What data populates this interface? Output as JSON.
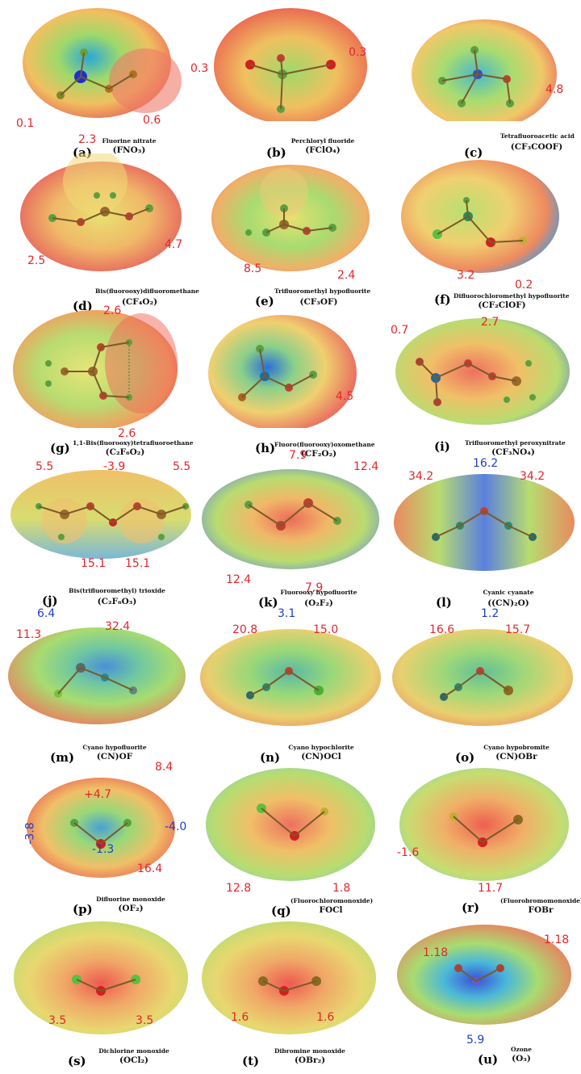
{
  "panels": [
    {
      "letter": "(a)",
      "name": "Fluorine nitrate",
      "formula": "(FNO₃)",
      "values": [
        "0.1",
        "2.3",
        "0.6"
      ]
    },
    {
      "letter": "(b)",
      "name": "Perchloryl fluoride",
      "formula": "(FClO₄)",
      "values": [
        "0.3",
        "0.3"
      ]
    },
    {
      "letter": "(c)",
      "name": "Tetrafluoroacetic acid",
      "formula": "(CF₃COOF)",
      "values": [
        "4.8"
      ]
    },
    {
      "letter": "(d)",
      "name": "Bis(fluorooxy)difluoromethane",
      "formula": "(CF₄O₂)",
      "values": [
        "2.5",
        "4.7"
      ]
    },
    {
      "letter": "(e)",
      "name": "Trifluoromethyl hypofluorite",
      "formula": "(CF₃OF)",
      "values": [
        "8.5",
        "2.4"
      ]
    },
    {
      "letter": "(f)",
      "name": "Difluorochloromethyl hypofluorite",
      "formula": "(CF₂ClOF)",
      "values": [
        "3.2",
        "0.2"
      ]
    },
    {
      "letter": "(g)",
      "name": "1,1-Bis(fluorooxy)tetrafluoroethane",
      "formula": "(C₂F₆O₂)",
      "values": [
        "2.6",
        "2.6"
      ]
    },
    {
      "letter": "(h)",
      "name": "Fluoro(fluorooxy)oxomethane",
      "formula": "(CF₂O₂)",
      "values": [
        "4.5"
      ]
    },
    {
      "letter": "(i)",
      "name": "Trifluoromethyl peroxynitrate",
      "formula": "(CF₃NO₄)",
      "values": [
        "0.7",
        "2.7"
      ]
    },
    {
      "letter": "(j)",
      "name": "Bis(trifluoromethyl) trioxide",
      "formula": "(C₂F₆O₃)",
      "values": [
        "5.5",
        "-3.9",
        "5.5",
        "15.1",
        "15.1"
      ]
    },
    {
      "letter": "(k)",
      "name": "Fluorooxy hypofluorite",
      "formula": "(O₂F₂)",
      "values": [
        "7.9",
        "12.4",
        "12.4",
        "7.9"
      ]
    },
    {
      "letter": "(l)",
      "name": "Cyanic cyanate",
      "formula": "((CN)₂O)",
      "values": [
        "34.2",
        "16.2",
        "34.2"
      ]
    },
    {
      "letter": "(m)",
      "name": "Cyano hypofluorite",
      "formula": "(CN)OF",
      "values": [
        "6.4",
        "32.4",
        "11.3"
      ]
    },
    {
      "letter": "(n)",
      "name": "Cyano hypochlorite",
      "formula": "(CN)OCl",
      "values": [
        "3.1",
        "20.8",
        "15.0"
      ]
    },
    {
      "letter": "(o)",
      "name": "Cyano hypobromite",
      "formula": "(CN)OBr",
      "values": [
        "1.2",
        "16.6",
        "15.7"
      ]
    },
    {
      "letter": "(p)",
      "name": "Difluorine monoxide",
      "formula": "(OF₂)",
      "values": [
        "8.4",
        "+4.7",
        "-4.0",
        "-3.8",
        "-1.3",
        "16.4"
      ]
    },
    {
      "letter": "(q)",
      "name": "(Fluorochloromonoxide)",
      "formula": "FOCl",
      "values": [
        "12.8",
        "1.8"
      ]
    },
    {
      "letter": "(r)",
      "name": "(Fluorobromomonoxide)",
      "formula": "FOBr",
      "values": [
        "-1.6",
        "11.7"
      ]
    },
    {
      "letter": "(s)",
      "name": "Dichlorine monoxide",
      "formula": "(OCl₂)",
      "values": [
        "3.5",
        "3.5"
      ]
    },
    {
      "letter": "(t)",
      "name": "Dibromine monoxide",
      "formula": "(OBr₂)",
      "values": [
        "1.6",
        "1.6"
      ]
    },
    {
      "letter": "(u)",
      "name": "Ozone",
      "formula": "(O₃)",
      "values": [
        "1.18",
        "1.18",
        "5.9"
      ]
    }
  ],
  "colors": {
    "positive": "#e5262b",
    "negative": "#1d3fcc"
  }
}
